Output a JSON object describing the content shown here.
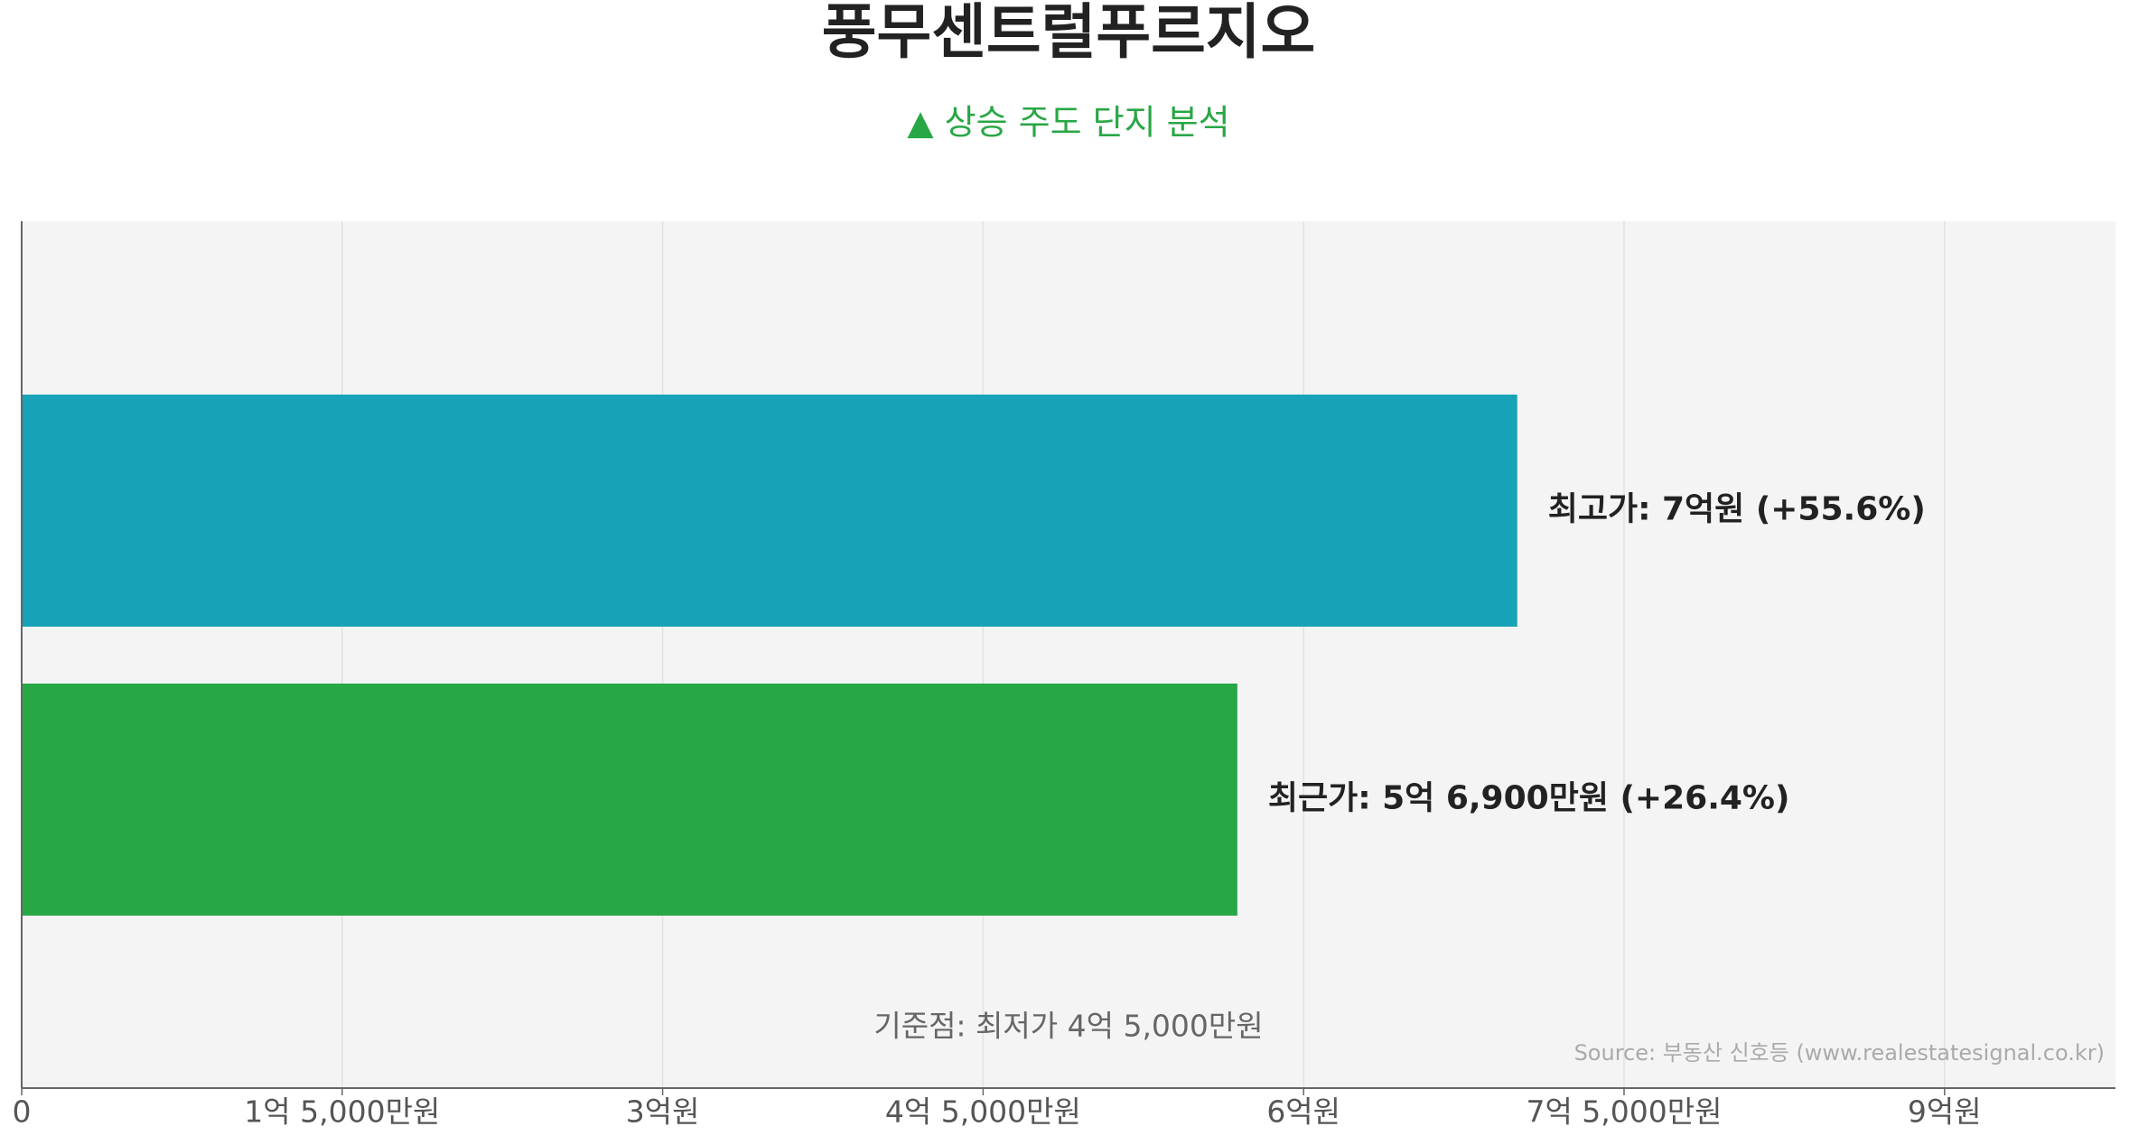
{
  "chart_data": {
    "type": "hbar",
    "title": "풍무센트럴푸르지오",
    "subtitle": "▲ 상승 주도 단지 분석",
    "annotation": "기준점: 최저가 4억 5,000만원",
    "source": "Source: 부동산 신호등 (www.realestatesignal.co.kr)",
    "values": [
      700000000,
      569000000
    ],
    "value_labels": [
      "최고가: 7억원 (+55.6%)",
      "최근가: 5억 6,900만원 (+26.4%)"
    ],
    "colors": [
      "#17a2b8",
      "#28a745"
    ],
    "xlim": [
      0,
      980000000
    ],
    "xticks": [
      0,
      {
        "value": 150000000,
        "label": "1억 5,000만원"
      },
      {
        "value": 300000000,
        "label": "3억원"
      },
      {
        "value": 450000000,
        "label": "4억 5,000만원"
      },
      {
        "value": 600000000,
        "label": "6억원"
      },
      {
        "value": 750000000,
        "label": "7억 5,000만원"
      },
      {
        "value": 900000000,
        "label": "9억원"
      }
    ],
    "grid": true
  }
}
